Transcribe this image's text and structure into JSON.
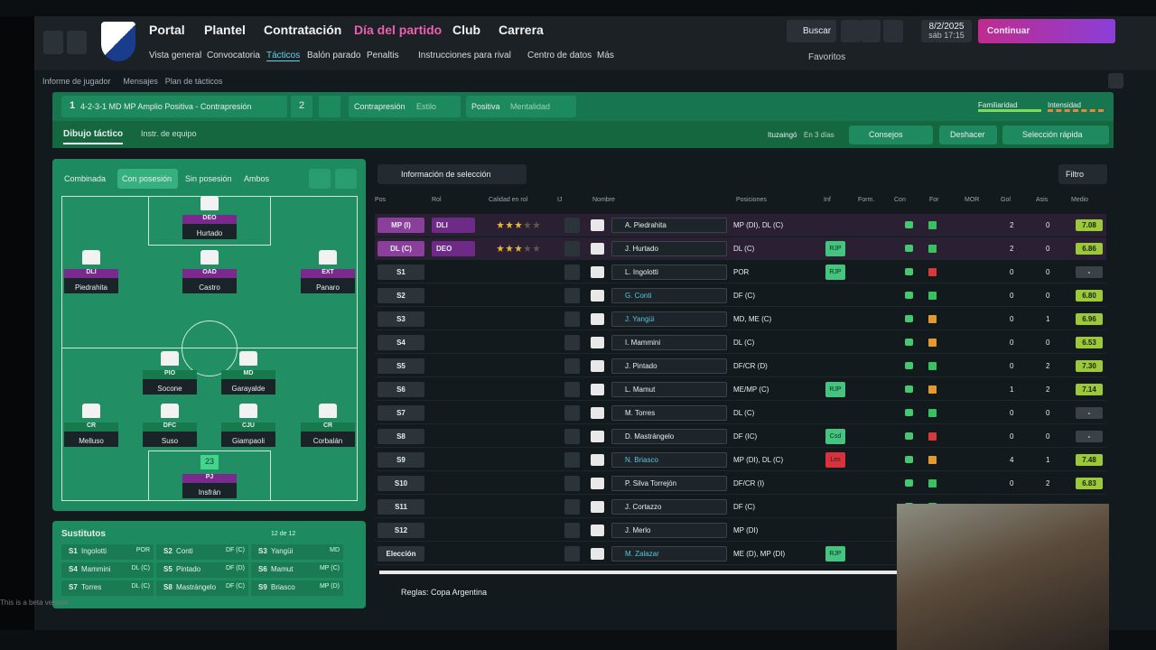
{
  "nav": {
    "menu": [
      "Portal",
      "Plantel",
      "Contratación",
      "Día del partido",
      "Club",
      "Carrera"
    ],
    "submenu": [
      "Vista general",
      "Convocatoria",
      "Tácticos",
      "Balón parado",
      "Penaltis",
      "Instrucciones para rival",
      "Centro de datos",
      "Más"
    ],
    "search": "Buscar",
    "date": "8/2/2025",
    "time": "sáb 17:15",
    "continue": "Continuar",
    "favorites": "Favoritos"
  },
  "breadcrumb": [
    "Informe de jugador",
    "Mensajes",
    "Plan de tácticos"
  ],
  "tactic": {
    "number": 1,
    "name": "4-2-3-1 MD MP Amplio Positiva - Contrapresión",
    "slot": 2,
    "style_value": "Contrapresión",
    "style_label": "Estilo",
    "mentality_value": "Positiva",
    "mentality_label": "Mentalidad",
    "familiarity": "Familiaridad",
    "intensity": "Intensidad"
  },
  "subtabs": [
    "Dibujo táctico",
    "Instr. de equipo"
  ],
  "next_match": {
    "opponent": "Ituzaingó",
    "when": "En 3 días"
  },
  "actions": [
    "Consejos",
    "Deshacer",
    "Selección rápida"
  ],
  "pitch": {
    "tabs": [
      "Combinada",
      "Con posesión",
      "Sin posesión",
      "Ambos"
    ],
    "players": [
      {
        "role": "DEO",
        "name": "Hurtado"
      },
      {
        "role": "DLI",
        "name": "Piedrahita"
      },
      {
        "role": "OAD",
        "name": "Castro"
      },
      {
        "role": "EXT",
        "name": "Panaro"
      },
      {
        "role": "PIO",
        "name": "Socone"
      },
      {
        "role": "MD",
        "name": "Garayalde"
      },
      {
        "role": "CR",
        "name": "Melluso"
      },
      {
        "role": "DFC",
        "name": "Suso"
      },
      {
        "role": "CJU",
        "name": "Giampaoli"
      },
      {
        "role": "CR",
        "name": "Corbalán"
      },
      {
        "role": "PJ",
        "name": "Insfrán"
      }
    ],
    "keeper_number": 23
  },
  "selection_info": "Información de selección",
  "filter": "Filtro",
  "table": {
    "headers": [
      "Pos",
      "Rol",
      "Calidad en rol",
      "IJ",
      "Nombre",
      "Posiciones",
      "Inf",
      "Form.",
      "Con",
      "For",
      "MOR",
      "Gol",
      "Asis",
      "Medio"
    ],
    "rows": [
      {
        "pos": "MP (I)",
        "role": "DLI",
        "name": "A. Piedrahita",
        "positions": "MP (DI), DL (C)",
        "gol": 2,
        "asis": 0,
        "medio": "7.08"
      },
      {
        "pos": "DL (C)",
        "role": "DEO",
        "name": "J. Hurtado",
        "positions": "DL (C)",
        "inf": "RJP",
        "gol": 2,
        "asis": 0,
        "medio": "6.86"
      },
      {
        "pos": "S1",
        "name": "L. Ingolotti",
        "positions": "POR",
        "inf": "RJP",
        "gol": 0,
        "asis": 0,
        "medio": "-"
      },
      {
        "pos": "S2",
        "name": "G. Conti",
        "positions": "DF (C)",
        "gol": 0,
        "asis": 0,
        "medio": "6.80"
      },
      {
        "pos": "S3",
        "name": "J. Yangüi",
        "positions": "MD, ME (C)",
        "gol": 0,
        "asis": 1,
        "medio": "6.96"
      },
      {
        "pos": "S4",
        "name": "I. Mammini",
        "positions": "DL (C)",
        "gol": 0,
        "asis": 0,
        "medio": "6.53"
      },
      {
        "pos": "S5",
        "name": "J. Pintado",
        "positions": "DF/CR (D)",
        "gol": 0,
        "asis": 2,
        "medio": "7.30"
      },
      {
        "pos": "S6",
        "name": "L. Mamut",
        "positions": "ME/MP (C)",
        "inf": "RJP",
        "gol": 1,
        "asis": 2,
        "medio": "7.14"
      },
      {
        "pos": "S7",
        "name": "M. Torres",
        "positions": "DL (C)",
        "gol": 0,
        "asis": 0,
        "medio": "-"
      },
      {
        "pos": "S8",
        "name": "D. Mastrángelo",
        "positions": "DF (IC)",
        "inf": "Csd",
        "gol": 0,
        "asis": 0,
        "medio": "-"
      },
      {
        "pos": "S9",
        "name": "N. Briasco",
        "positions": "MP (DI), DL (C)",
        "inf": "Les",
        "gol": 4,
        "asis": 1,
        "medio": "7.48"
      },
      {
        "pos": "S10",
        "name": "P. Silva Torrejón",
        "positions": "DF/CR (I)",
        "gol": 0,
        "asis": 2,
        "medio": "6.83"
      },
      {
        "pos": "S11",
        "name": "J. Cortazzo",
        "positions": "DF (C)"
      },
      {
        "pos": "S12",
        "name": "J. Merlo",
        "positions": "MP (DI)"
      },
      {
        "pos": "Elección",
        "name": "M. Zalazar",
        "positions": "ME (D), MP (DI)",
        "inf": "RJP"
      }
    ]
  },
  "subs": {
    "title": "Sustitutos",
    "count": "12 de 12",
    "list": [
      {
        "slot": "S1",
        "name": "Ingolotti",
        "pos": "POR"
      },
      {
        "slot": "S2",
        "name": "Conti",
        "pos": "DF (C)"
      },
      {
        "slot": "S3",
        "name": "Yangüi",
        "pos": "MD"
      },
      {
        "slot": "S4",
        "name": "Mammini",
        "pos": "DL (C)"
      },
      {
        "slot": "S5",
        "name": "Pintado",
        "pos": "DF (D)"
      },
      {
        "slot": "S6",
        "name": "Mamut",
        "pos": "MP (C)"
      },
      {
        "slot": "S7",
        "name": "Torres",
        "pos": "DL (C)"
      },
      {
        "slot": "S8",
        "name": "Mastrángelo",
        "pos": "DF (C)"
      },
      {
        "slot": "S9",
        "name": "Briasco",
        "pos": "MP (D)"
      }
    ]
  },
  "rules": "Reglas: Copa Argentina",
  "beta": "This is a beta version"
}
